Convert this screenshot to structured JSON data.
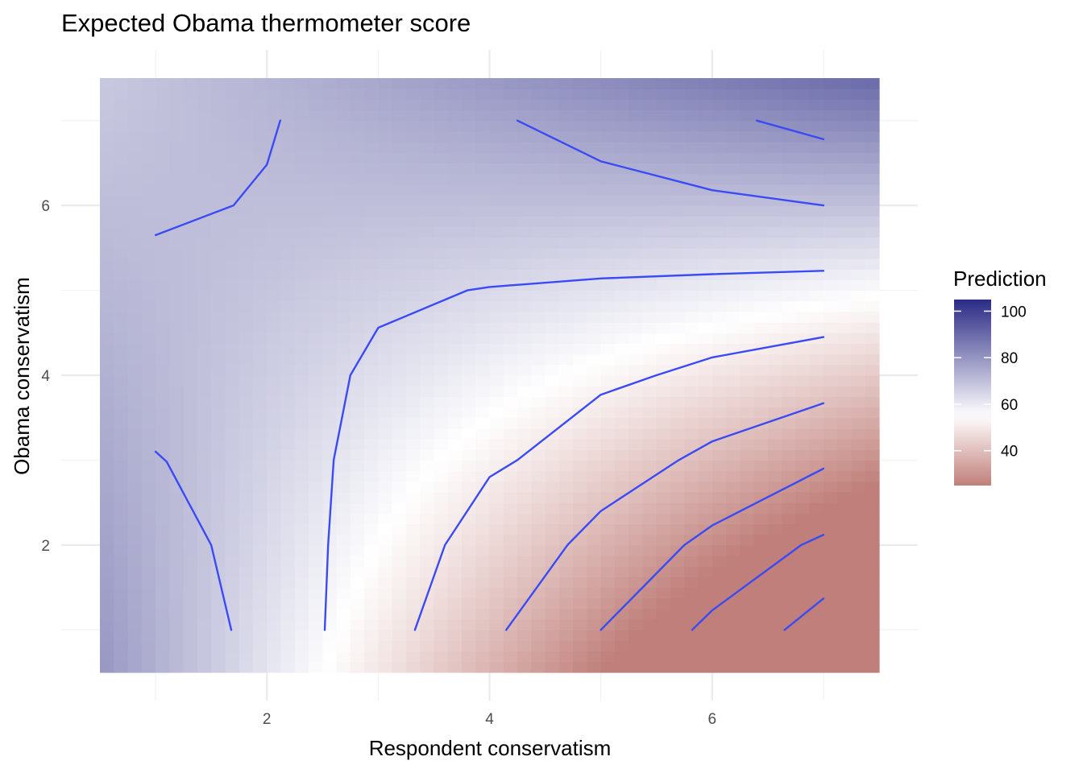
{
  "chart_data": {
    "type": "heatmap",
    "title": "Expected Obama thermometer score",
    "xlabel": "Respondent conservatism",
    "ylabel": "Obama conservatism",
    "xlim": [
      0.5,
      7.5
    ],
    "ylim": [
      0.5,
      7.5
    ],
    "x_ticks": [
      2,
      4,
      6
    ],
    "y_ticks": [
      2,
      4,
      6
    ],
    "grid": true,
    "legend": {
      "title": "Prediction",
      "placement": "right",
      "ticks": [
        100,
        80,
        60,
        40
      ],
      "range": [
        25,
        105
      ],
      "midpoint": 55
    },
    "colors": {
      "low": "#c07f7a",
      "mid": "#ffffff",
      "high": "#2b2a85",
      "contour": "#3a4af5"
    },
    "contours": [
      {
        "points": [
          [
            1.0,
            5.65
          ],
          [
            1.7,
            6.0
          ],
          [
            2.0,
            6.48
          ],
          [
            2.12,
            7.0
          ]
        ]
      },
      {
        "points": [
          [
            4.25,
            7.0
          ],
          [
            5.0,
            6.52
          ],
          [
            6.0,
            6.18
          ],
          [
            7.0,
            6.0
          ]
        ]
      },
      {
        "points": [
          [
            6.4,
            7.0
          ],
          [
            7.0,
            6.78
          ]
        ]
      },
      {
        "points": [
          [
            1.0,
            3.1
          ],
          [
            1.1,
            2.98
          ],
          [
            1.5,
            2.0
          ],
          [
            1.68,
            1.0
          ]
        ]
      },
      {
        "points": [
          [
            2.52,
            1.0
          ],
          [
            2.55,
            2.0
          ],
          [
            2.6,
            3.0
          ],
          [
            2.75,
            4.0
          ],
          [
            3.0,
            4.56
          ],
          [
            3.8,
            5.0
          ],
          [
            4.0,
            5.04
          ],
          [
            5.0,
            5.14
          ],
          [
            6.0,
            5.19
          ],
          [
            7.0,
            5.23
          ]
        ]
      },
      {
        "points": [
          [
            3.33,
            1.0
          ],
          [
            3.6,
            2.0
          ],
          [
            4.0,
            2.8
          ],
          [
            4.25,
            3.0
          ],
          [
            5.0,
            3.77
          ],
          [
            5.5,
            4.0
          ],
          [
            6.0,
            4.21
          ],
          [
            7.0,
            4.45
          ]
        ]
      },
      {
        "points": [
          [
            4.15,
            1.0
          ],
          [
            4.7,
            2.0
          ],
          [
            5.0,
            2.4
          ],
          [
            5.7,
            3.0
          ],
          [
            6.0,
            3.22
          ],
          [
            7.0,
            3.67
          ]
        ]
      },
      {
        "points": [
          [
            5.0,
            1.0
          ],
          [
            5.75,
            2.0
          ],
          [
            6.0,
            2.23
          ],
          [
            7.0,
            2.9
          ]
        ]
      },
      {
        "points": [
          [
            5.82,
            1.0
          ],
          [
            6.0,
            1.23
          ],
          [
            6.8,
            2.0
          ],
          [
            7.0,
            2.12
          ]
        ]
      },
      {
        "points": [
          [
            6.65,
            1.0
          ],
          [
            7.0,
            1.37
          ]
        ]
      }
    ]
  }
}
